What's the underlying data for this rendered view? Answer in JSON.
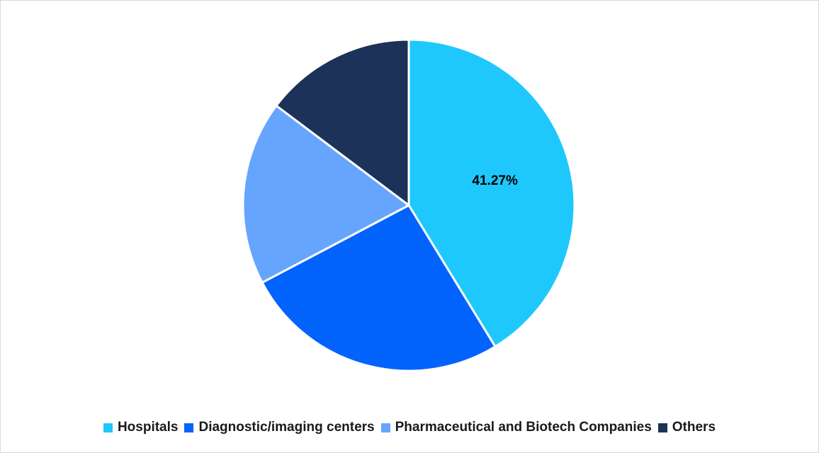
{
  "chart_data": {
    "type": "pie",
    "title": "",
    "legend_position": "bottom",
    "slices": [
      {
        "label": "Hospitals",
        "value": 41.27,
        "data_label": "41.27%",
        "color": "#1EC8FC"
      },
      {
        "label": "Diagnostic/imaging centers",
        "value": 26.0,
        "data_label": "",
        "color": "#0363FD"
      },
      {
        "label": "Pharmaceutical and Biotech Companies",
        "value": 18.0,
        "data_label": "",
        "color": "#66A5FD"
      },
      {
        "label": "Others",
        "value": 14.73,
        "data_label": "",
        "color": "#1C3258"
      }
    ]
  }
}
